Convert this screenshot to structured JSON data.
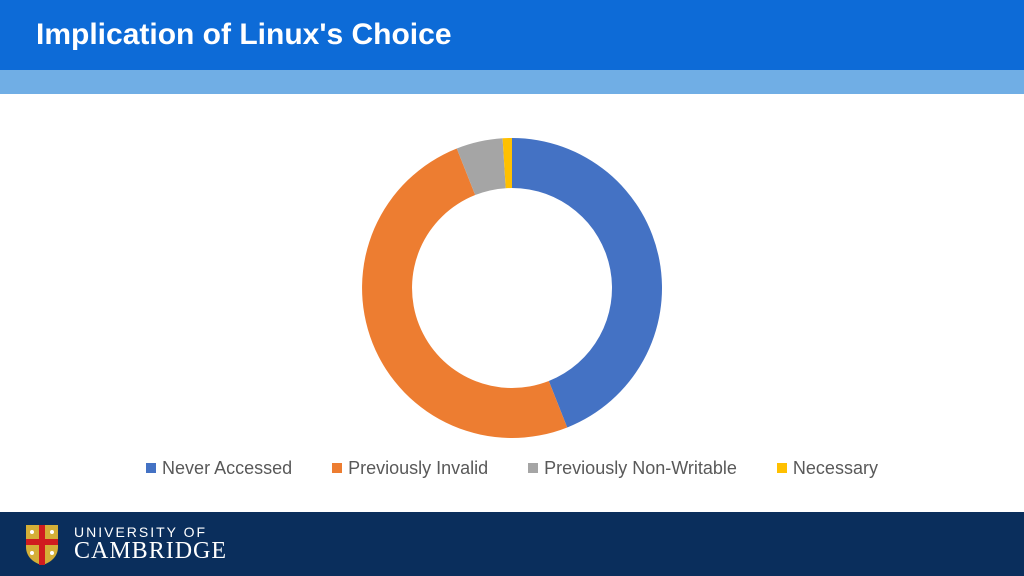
{
  "slide": {
    "title": "Implication of Linux's Choice",
    "title_bar_color": "#0d6bd7",
    "accent_bar_color": "#70aee5",
    "background_color": "#ffffff",
    "title_color": "#ffffff",
    "title_fontsize": 30
  },
  "chart": {
    "type": "donut",
    "outer_radius": 150,
    "inner_radius": 100,
    "start_angle_deg": 0,
    "gap_deg": 0,
    "background_color": "#ffffff",
    "series": [
      {
        "label": "Never Accessed",
        "value": 44,
        "color": "#4472c4"
      },
      {
        "label": "Previously Invalid",
        "value": 50,
        "color": "#ed7d31"
      },
      {
        "label": "Previously Non-Writable",
        "value": 5,
        "color": "#a5a5a5"
      },
      {
        "label": "Necessary",
        "value": 1,
        "color": "#ffc000"
      }
    ]
  },
  "legend": {
    "fontsize": 18,
    "text_color": "#595959",
    "swatch_size": 10,
    "items": [
      {
        "label": "Never Accessed",
        "color": "#4472c4"
      },
      {
        "label": "Previously Invalid",
        "color": "#ed7d31"
      },
      {
        "label": "Previously Non-Writable",
        "color": "#a5a5a5"
      },
      {
        "label": "Necessary",
        "color": "#ffc000"
      }
    ]
  },
  "footer": {
    "background_color": "#0a2e5c",
    "text_color": "#ffffff",
    "line1": "UNIVERSITY OF",
    "line2": "CAMBRIDGE",
    "crest": {
      "shield_color": "#d4af37",
      "cross_color": "#d01c1f",
      "accent_color": "#ffffff"
    }
  }
}
